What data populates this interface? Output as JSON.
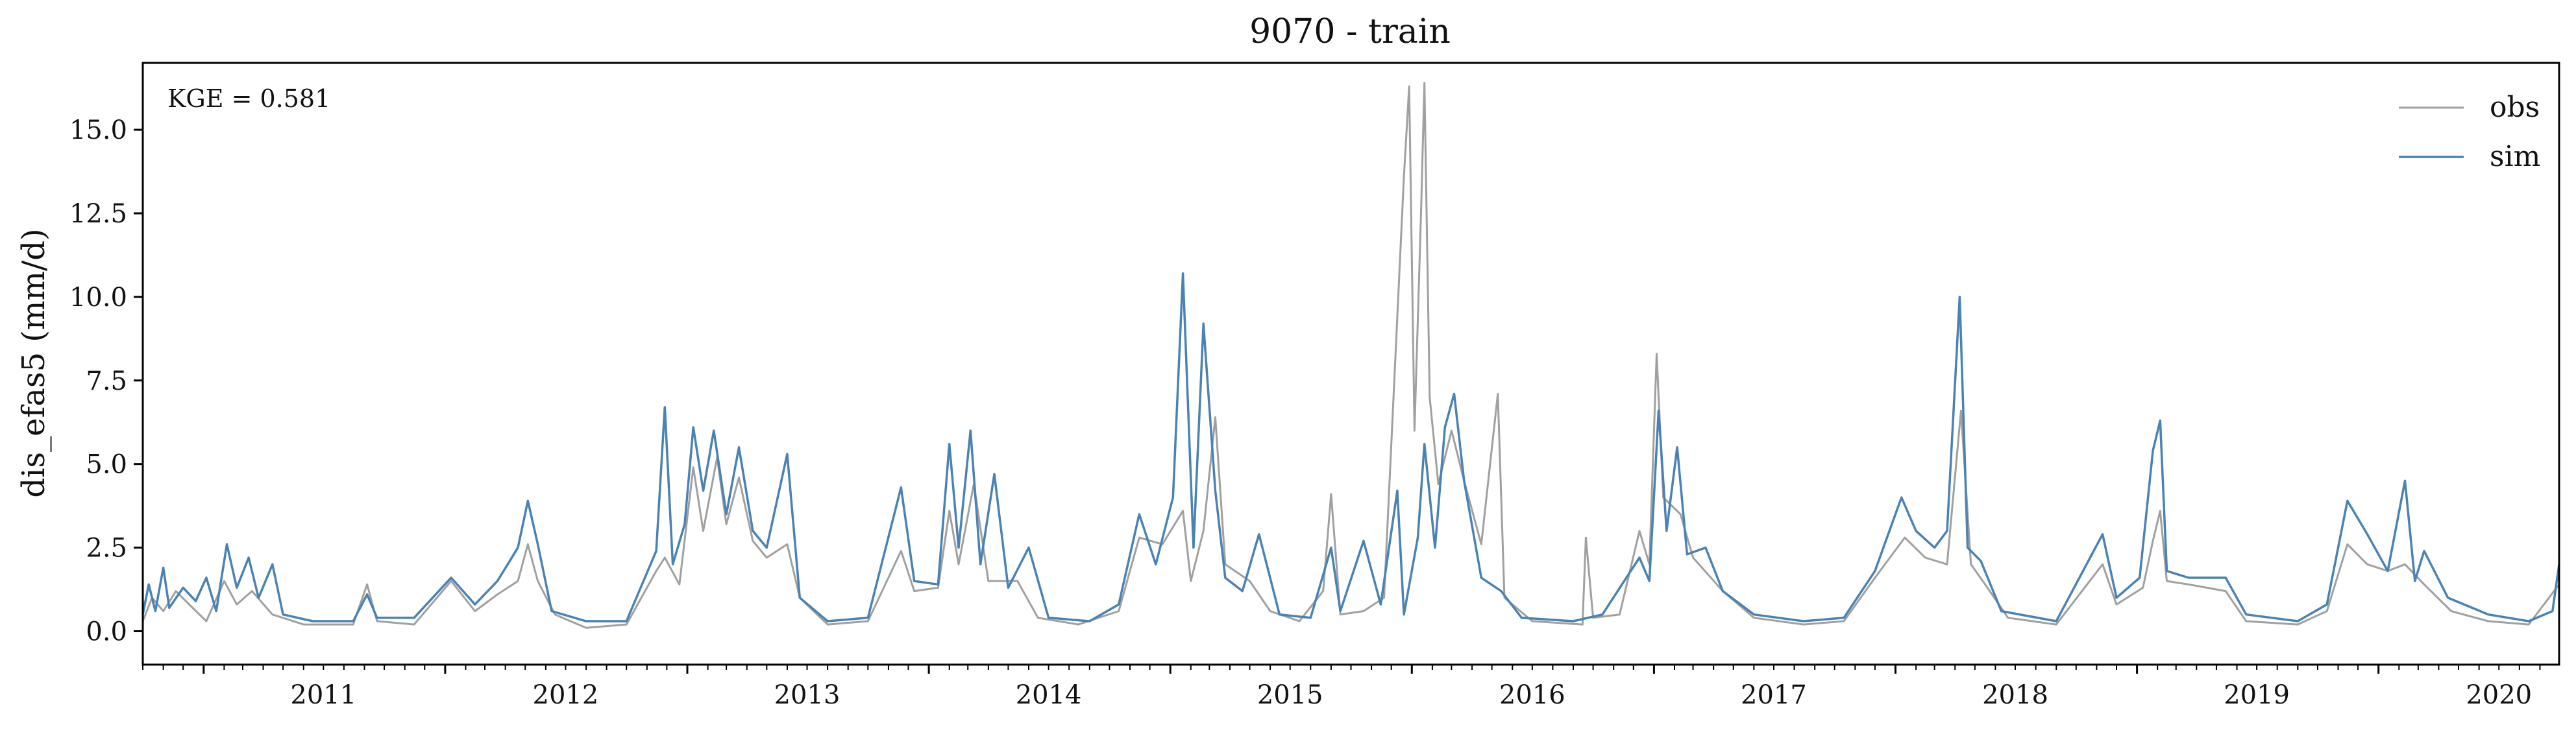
{
  "chart_data": {
    "type": "line",
    "title": "9070 - train",
    "xlabel": "",
    "ylabel": "dis_efas5 (mm/d)",
    "annotation": "KGE = 0.581",
    "x_range": [
      "2010-10-01",
      "2020-09-30"
    ],
    "ylim": [
      -1.0,
      17.0
    ],
    "x_ticks": [
      "2011",
      "2012",
      "2013",
      "2014",
      "2015",
      "2016",
      "2017",
      "2018",
      "2019",
      "2020"
    ],
    "y_ticks": [
      "0.0",
      "2.5",
      "5.0",
      "7.5",
      "10.0",
      "12.5",
      "15.0"
    ],
    "grid": false,
    "legend_position": "top-right",
    "series": [
      {
        "name": "obs",
        "color": "#a0a0a0",
        "points": [
          [
            "2010-10-01",
            0.3
          ],
          [
            "2010-10-15",
            1.0
          ],
          [
            "2010-11-01",
            0.6
          ],
          [
            "2010-11-20",
            1.2
          ],
          [
            "2010-12-10",
            0.8
          ],
          [
            "2011-01-05",
            0.3
          ],
          [
            "2011-02-01",
            1.5
          ],
          [
            "2011-02-20",
            0.8
          ],
          [
            "2011-03-15",
            1.2
          ],
          [
            "2011-04-15",
            0.5
          ],
          [
            "2011-06-01",
            0.2
          ],
          [
            "2011-08-15",
            0.2
          ],
          [
            "2011-09-05",
            1.4
          ],
          [
            "2011-09-20",
            0.3
          ],
          [
            "2011-11-15",
            0.2
          ],
          [
            "2012-01-10",
            1.5
          ],
          [
            "2012-02-15",
            0.6
          ],
          [
            "2012-03-20",
            1.1
          ],
          [
            "2012-04-20",
            1.5
          ],
          [
            "2012-05-05",
            2.6
          ],
          [
            "2012-05-20",
            1.5
          ],
          [
            "2012-06-15",
            0.5
          ],
          [
            "2012-08-01",
            0.1
          ],
          [
            "2012-10-01",
            0.2
          ],
          [
            "2012-11-15",
            1.8
          ],
          [
            "2012-11-28",
            2.2
          ],
          [
            "2012-12-20",
            1.4
          ],
          [
            "2013-01-10",
            4.9
          ],
          [
            "2013-01-25",
            3.0
          ],
          [
            "2013-02-15",
            5.2
          ],
          [
            "2013-03-01",
            3.2
          ],
          [
            "2013-03-20",
            4.6
          ],
          [
            "2013-04-10",
            2.7
          ],
          [
            "2013-05-01",
            2.2
          ],
          [
            "2013-06-01",
            2.6
          ],
          [
            "2013-06-20",
            1.0
          ],
          [
            "2013-08-01",
            0.2
          ],
          [
            "2013-10-01",
            0.3
          ],
          [
            "2013-11-20",
            2.4
          ],
          [
            "2013-12-10",
            1.2
          ],
          [
            "2014-01-15",
            1.3
          ],
          [
            "2014-02-01",
            3.6
          ],
          [
            "2014-02-15",
            2.0
          ],
          [
            "2014-03-10",
            4.4
          ],
          [
            "2014-04-01",
            1.5
          ],
          [
            "2014-05-15",
            1.5
          ],
          [
            "2014-06-15",
            0.4
          ],
          [
            "2014-08-15",
            0.2
          ],
          [
            "2014-10-15",
            0.6
          ],
          [
            "2014-11-15",
            2.8
          ],
          [
            "2014-12-20",
            2.6
          ],
          [
            "2015-01-20",
            3.6
          ],
          [
            "2015-02-01",
            1.5
          ],
          [
            "2015-02-20",
            3.0
          ],
          [
            "2015-03-10",
            6.4
          ],
          [
            "2015-03-25",
            2.0
          ],
          [
            "2015-05-01",
            1.5
          ],
          [
            "2015-06-01",
            0.6
          ],
          [
            "2015-07-15",
            0.3
          ],
          [
            "2015-08-20",
            1.2
          ],
          [
            "2015-09-01",
            4.1
          ],
          [
            "2015-09-15",
            0.5
          ],
          [
            "2015-10-20",
            0.6
          ],
          [
            "2015-11-20",
            1.0
          ],
          [
            "2015-12-20",
            13.6
          ],
          [
            "2015-12-28",
            16.3
          ],
          [
            "2016-01-05",
            6.0
          ],
          [
            "2016-01-15",
            12.6
          ],
          [
            "2016-01-20",
            16.4
          ],
          [
            "2016-01-28",
            7.0
          ],
          [
            "2016-02-10",
            4.4
          ],
          [
            "2016-03-01",
            6.0
          ],
          [
            "2016-03-20",
            4.5
          ],
          [
            "2016-04-15",
            2.6
          ],
          [
            "2016-05-10",
            7.1
          ],
          [
            "2016-05-20",
            1.0
          ],
          [
            "2016-07-01",
            0.3
          ],
          [
            "2016-09-15",
            0.2
          ],
          [
            "2016-09-20",
            2.8
          ],
          [
            "2016-10-01",
            0.4
          ],
          [
            "2016-11-10",
            0.5
          ],
          [
            "2016-12-10",
            3.0
          ],
          [
            "2016-12-25",
            2.0
          ],
          [
            "2017-01-05",
            8.3
          ],
          [
            "2017-01-15",
            4.0
          ],
          [
            "2017-02-10",
            3.5
          ],
          [
            "2017-03-01",
            2.2
          ],
          [
            "2017-04-15",
            1.2
          ],
          [
            "2017-06-01",
            0.4
          ],
          [
            "2017-08-15",
            0.2
          ],
          [
            "2017-10-15",
            0.3
          ],
          [
            "2017-12-01",
            1.6
          ],
          [
            "2018-01-15",
            2.8
          ],
          [
            "2018-02-15",
            2.2
          ],
          [
            "2018-03-20",
            2.0
          ],
          [
            "2018-04-10",
            6.6
          ],
          [
            "2018-04-25",
            2.0
          ],
          [
            "2018-05-20",
            1.3
          ],
          [
            "2018-06-20",
            0.4
          ],
          [
            "2018-09-01",
            0.2
          ],
          [
            "2018-11-10",
            2.0
          ],
          [
            "2018-12-01",
            0.8
          ],
          [
            "2019-01-10",
            1.3
          ],
          [
            "2019-01-25",
            2.7
          ],
          [
            "2019-02-05",
            3.6
          ],
          [
            "2019-02-15",
            1.5
          ],
          [
            "2019-03-20",
            1.4
          ],
          [
            "2019-05-15",
            1.2
          ],
          [
            "2019-06-15",
            0.3
          ],
          [
            "2019-09-01",
            0.2
          ],
          [
            "2019-10-15",
            0.6
          ],
          [
            "2019-11-15",
            2.6
          ],
          [
            "2019-12-15",
            2.0
          ],
          [
            "2020-01-15",
            1.8
          ],
          [
            "2020-02-10",
            2.0
          ],
          [
            "2020-03-10",
            1.4
          ],
          [
            "2020-04-20",
            0.6
          ],
          [
            "2020-06-15",
            0.3
          ],
          [
            "2020-08-15",
            0.2
          ],
          [
            "2020-09-30",
            1.4
          ]
        ]
      },
      {
        "name": "sim",
        "color": "#4a82b4",
        "points": [
          [
            "2010-10-01",
            0.5
          ],
          [
            "2010-10-10",
            1.4
          ],
          [
            "2010-10-20",
            0.6
          ],
          [
            "2010-11-01",
            1.9
          ],
          [
            "2010-11-10",
            0.7
          ],
          [
            "2010-12-01",
            1.3
          ],
          [
            "2010-12-20",
            0.9
          ],
          [
            "2011-01-05",
            1.6
          ],
          [
            "2011-01-20",
            0.6
          ],
          [
            "2011-02-05",
            2.6
          ],
          [
            "2011-02-20",
            1.3
          ],
          [
            "2011-03-10",
            2.2
          ],
          [
            "2011-03-25",
            1.0
          ],
          [
            "2011-04-15",
            2.0
          ],
          [
            "2011-05-01",
            0.5
          ],
          [
            "2011-06-15",
            0.3
          ],
          [
            "2011-08-15",
            0.3
          ],
          [
            "2011-09-05",
            1.1
          ],
          [
            "2011-09-20",
            0.4
          ],
          [
            "2011-11-15",
            0.4
          ],
          [
            "2012-01-10",
            1.6
          ],
          [
            "2012-02-15",
            0.8
          ],
          [
            "2012-03-20",
            1.5
          ],
          [
            "2012-04-20",
            2.5
          ],
          [
            "2012-05-05",
            3.9
          ],
          [
            "2012-05-20",
            2.6
          ],
          [
            "2012-06-10",
            0.6
          ],
          [
            "2012-08-01",
            0.3
          ],
          [
            "2012-10-01",
            0.3
          ],
          [
            "2012-11-15",
            2.4
          ],
          [
            "2012-11-28",
            6.7
          ],
          [
            "2012-12-10",
            2.0
          ],
          [
            "2012-12-28",
            3.2
          ],
          [
            "2013-01-10",
            6.1
          ],
          [
            "2013-01-25",
            4.2
          ],
          [
            "2013-02-10",
            6.0
          ],
          [
            "2013-03-01",
            3.5
          ],
          [
            "2013-03-20",
            5.5
          ],
          [
            "2013-04-10",
            3.0
          ],
          [
            "2013-05-01",
            2.5
          ],
          [
            "2013-06-01",
            5.3
          ],
          [
            "2013-06-20",
            1.0
          ],
          [
            "2013-08-01",
            0.3
          ],
          [
            "2013-10-01",
            0.4
          ],
          [
            "2013-11-20",
            4.3
          ],
          [
            "2013-12-10",
            1.5
          ],
          [
            "2014-01-15",
            1.4
          ],
          [
            "2014-02-01",
            5.6
          ],
          [
            "2014-02-15",
            2.5
          ],
          [
            "2014-03-05",
            6.0
          ],
          [
            "2014-03-20",
            2.0
          ],
          [
            "2014-04-10",
            4.7
          ],
          [
            "2014-05-01",
            1.3
          ],
          [
            "2014-06-01",
            2.5
          ],
          [
            "2014-07-01",
            0.4
          ],
          [
            "2014-09-01",
            0.3
          ],
          [
            "2014-10-15",
            0.8
          ],
          [
            "2014-11-15",
            3.5
          ],
          [
            "2014-12-10",
            2.0
          ],
          [
            "2015-01-05",
            4.0
          ],
          [
            "2015-01-20",
            10.7
          ],
          [
            "2015-02-05",
            2.5
          ],
          [
            "2015-02-20",
            9.2
          ],
          [
            "2015-03-10",
            4.2
          ],
          [
            "2015-03-25",
            1.6
          ],
          [
            "2015-04-20",
            1.2
          ],
          [
            "2015-05-15",
            2.9
          ],
          [
            "2015-06-15",
            0.5
          ],
          [
            "2015-08-01",
            0.4
          ],
          [
            "2015-09-01",
            2.5
          ],
          [
            "2015-09-15",
            0.6
          ],
          [
            "2015-10-20",
            2.7
          ],
          [
            "2015-11-15",
            0.8
          ],
          [
            "2015-12-10",
            4.2
          ],
          [
            "2015-12-20",
            0.5
          ],
          [
            "2016-01-10",
            2.8
          ],
          [
            "2016-01-20",
            5.6
          ],
          [
            "2016-02-05",
            2.5
          ],
          [
            "2016-02-20",
            6.1
          ],
          [
            "2016-03-05",
            7.1
          ],
          [
            "2016-03-20",
            4.5
          ],
          [
            "2016-04-15",
            1.6
          ],
          [
            "2016-05-15",
            1.2
          ],
          [
            "2016-06-15",
            0.4
          ],
          [
            "2016-09-01",
            0.3
          ],
          [
            "2016-10-15",
            0.5
          ],
          [
            "2016-12-10",
            2.2
          ],
          [
            "2016-12-25",
            1.5
          ],
          [
            "2017-01-08",
            6.6
          ],
          [
            "2017-01-20",
            3.0
          ],
          [
            "2017-02-05",
            5.5
          ],
          [
            "2017-02-20",
            2.3
          ],
          [
            "2017-03-20",
            2.5
          ],
          [
            "2017-04-15",
            1.2
          ],
          [
            "2017-06-01",
            0.5
          ],
          [
            "2017-08-15",
            0.3
          ],
          [
            "2017-10-15",
            0.4
          ],
          [
            "2017-12-01",
            1.8
          ],
          [
            "2018-01-10",
            4.0
          ],
          [
            "2018-02-01",
            3.0
          ],
          [
            "2018-03-01",
            2.5
          ],
          [
            "2018-03-20",
            3.0
          ],
          [
            "2018-04-08",
            10.0
          ],
          [
            "2018-04-20",
            2.5
          ],
          [
            "2018-05-10",
            2.1
          ],
          [
            "2018-06-10",
            0.6
          ],
          [
            "2018-09-01",
            0.3
          ],
          [
            "2018-11-10",
            2.9
          ],
          [
            "2018-12-01",
            1.0
          ],
          [
            "2019-01-05",
            1.6
          ],
          [
            "2019-01-25",
            5.4
          ],
          [
            "2019-02-05",
            6.3
          ],
          [
            "2019-02-15",
            1.8
          ],
          [
            "2019-03-20",
            1.6
          ],
          [
            "2019-05-15",
            1.6
          ],
          [
            "2019-06-15",
            0.5
          ],
          [
            "2019-09-01",
            0.3
          ],
          [
            "2019-10-15",
            0.8
          ],
          [
            "2019-11-15",
            3.9
          ],
          [
            "2019-12-15",
            2.9
          ],
          [
            "2020-01-15",
            1.8
          ],
          [
            "2020-02-10",
            4.5
          ],
          [
            "2020-02-25",
            1.5
          ],
          [
            "2020-03-10",
            2.4
          ],
          [
            "2020-04-15",
            1.0
          ],
          [
            "2020-06-15",
            0.5
          ],
          [
            "2020-08-15",
            0.3
          ],
          [
            "2020-09-20",
            0.6
          ],
          [
            "2020-09-30",
            2.0
          ]
        ]
      }
    ]
  }
}
